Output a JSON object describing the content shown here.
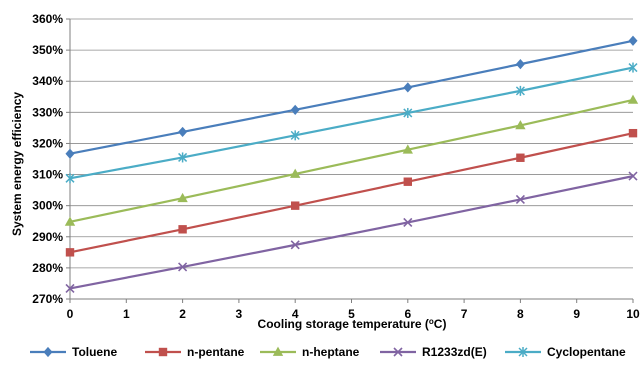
{
  "chart_data": {
    "type": "line",
    "xlabel": "Cooling storage temperature (",
    "xlabel_unit_sup": "o",
    "xlabel_unit_rest": "C)",
    "ylabel": "System energy efficiency",
    "xlim": [
      0,
      10
    ],
    "ylim": [
      270,
      360
    ],
    "x_ticks": [
      0,
      1,
      2,
      3,
      4,
      5,
      6,
      7,
      8,
      9,
      10
    ],
    "x_tick_labels": [
      "0",
      "1",
      "2",
      "3",
      "4",
      "5",
      "6",
      "7",
      "8",
      "9",
      "10"
    ],
    "y_ticks": [
      270,
      280,
      290,
      300,
      310,
      320,
      330,
      340,
      350,
      360
    ],
    "y_tick_labels": [
      "270%",
      "280%",
      "290%",
      "300%",
      "310%",
      "320%",
      "330%",
      "340%",
      "350%",
      "360%"
    ],
    "grid": "horizontal",
    "legend_position": "bottom",
    "x": [
      0,
      2,
      4,
      6,
      8,
      10
    ],
    "series": [
      {
        "name": "Toluene",
        "color": "#4a7ebb",
        "marker": "diamond",
        "values": [
          316.7,
          323.7,
          330.8,
          338.0,
          345.5,
          353.0
        ]
      },
      {
        "name": "n-pentane",
        "color": "#c0504d",
        "marker": "square",
        "values": [
          285.0,
          292.4,
          300.0,
          307.7,
          315.4,
          323.3
        ]
      },
      {
        "name": "n-heptane",
        "color": "#9bbb59",
        "marker": "triangle",
        "values": [
          294.8,
          302.4,
          310.2,
          318.0,
          325.8,
          334.0
        ]
      },
      {
        "name": "R1233zd(E)",
        "color": "#8064a2",
        "marker": "x",
        "values": [
          273.4,
          280.3,
          287.4,
          294.6,
          302.0,
          309.5
        ]
      },
      {
        "name": "Cyclopentane",
        "color": "#4bacc6",
        "marker": "star",
        "values": [
          308.8,
          315.5,
          322.6,
          329.8,
          336.9,
          344.4
        ]
      }
    ]
  }
}
